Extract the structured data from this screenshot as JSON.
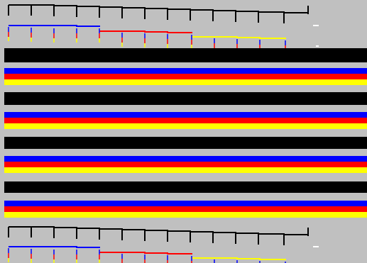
{
  "palette": {
    "background": "#c0c0c0",
    "black": "#000000",
    "blue": "#0000ff",
    "red": "#ff0000",
    "yellow": "#ffff00",
    "highlight": "#ffffff"
  },
  "connector_panels": [
    {
      "name": "top-connector-diagram",
      "black_trace_tick_count": 13,
      "colored_trace_order": [
        "blue",
        "red",
        "yellow"
      ],
      "colored_trace_tick_count": 12
    },
    {
      "name": "bottom-connector-diagram",
      "black_trace_tick_count": 13,
      "colored_trace_order": [
        "blue",
        "red",
        "yellow"
      ],
      "colored_trace_tick_count": 12
    }
  ],
  "stripe_sequence": [
    "black",
    "background",
    "blue",
    "red",
    "yellow",
    "background",
    "black",
    "background",
    "blue",
    "red",
    "yellow",
    "background",
    "black",
    "background",
    "blue",
    "red",
    "yellow",
    "background",
    "black",
    "background",
    "blue",
    "red",
    "yellow"
  ],
  "icons": [
    "black-step-trace-icon",
    "colored-step-trace-icon",
    "color-stripe-band-icon"
  ]
}
